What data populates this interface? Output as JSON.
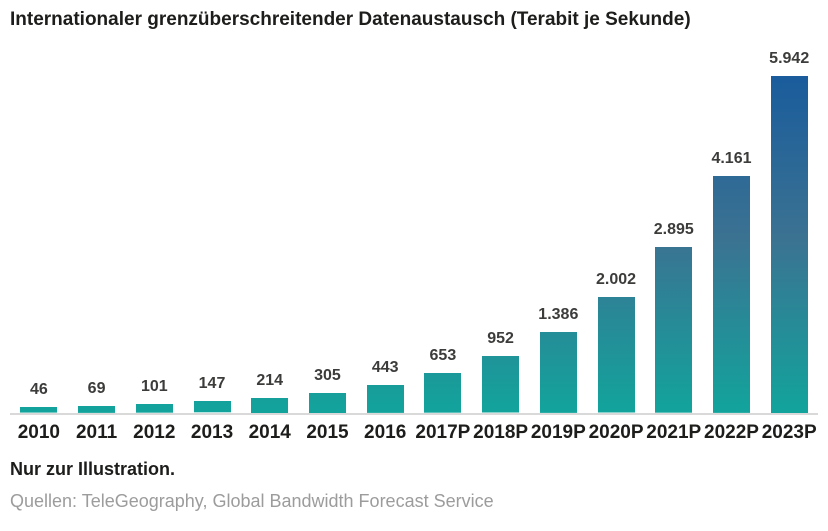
{
  "title": "Internationaler grenzüberschreitender Datenaustausch (Terabit je Sekunde)",
  "chart_data": {
    "type": "bar",
    "title": "Internationaler grenzüberschreitender Datenaustausch (Terabit je Sekunde)",
    "unit": "Terabit je Sekunde",
    "categories": [
      "2010",
      "2011",
      "2012",
      "2013",
      "2014",
      "2015",
      "2016",
      "2017P",
      "2018P",
      "2019P",
      "2020P",
      "2021P",
      "2022P",
      "2023P"
    ],
    "values": [
      46,
      69,
      101,
      147,
      214,
      305,
      443,
      653,
      952,
      1386,
      2002,
      2895,
      4161,
      5942
    ],
    "value_labels": [
      "46",
      "69",
      "101",
      "147",
      "214",
      "305",
      "443",
      "653",
      "952",
      "1.386",
      "2.002",
      "2.895",
      "4.161",
      "5.942"
    ],
    "ylim": [
      0,
      5942
    ],
    "grid": false,
    "legend": "none",
    "colors": {
      "bar_gradient_top": "#1a5c9c",
      "bar_gradient_mid": "#3b7292",
      "bar_gradient_bottom": "#12a49c",
      "axis_line": "#d9d9d9",
      "value_label": "#3c3c3b",
      "category_label": "#1d1d1b"
    }
  },
  "footer": {
    "note": "Nur zur Illustration.",
    "source": "Quellen: TeleGeography, Global Bandwidth Forecast Service"
  }
}
